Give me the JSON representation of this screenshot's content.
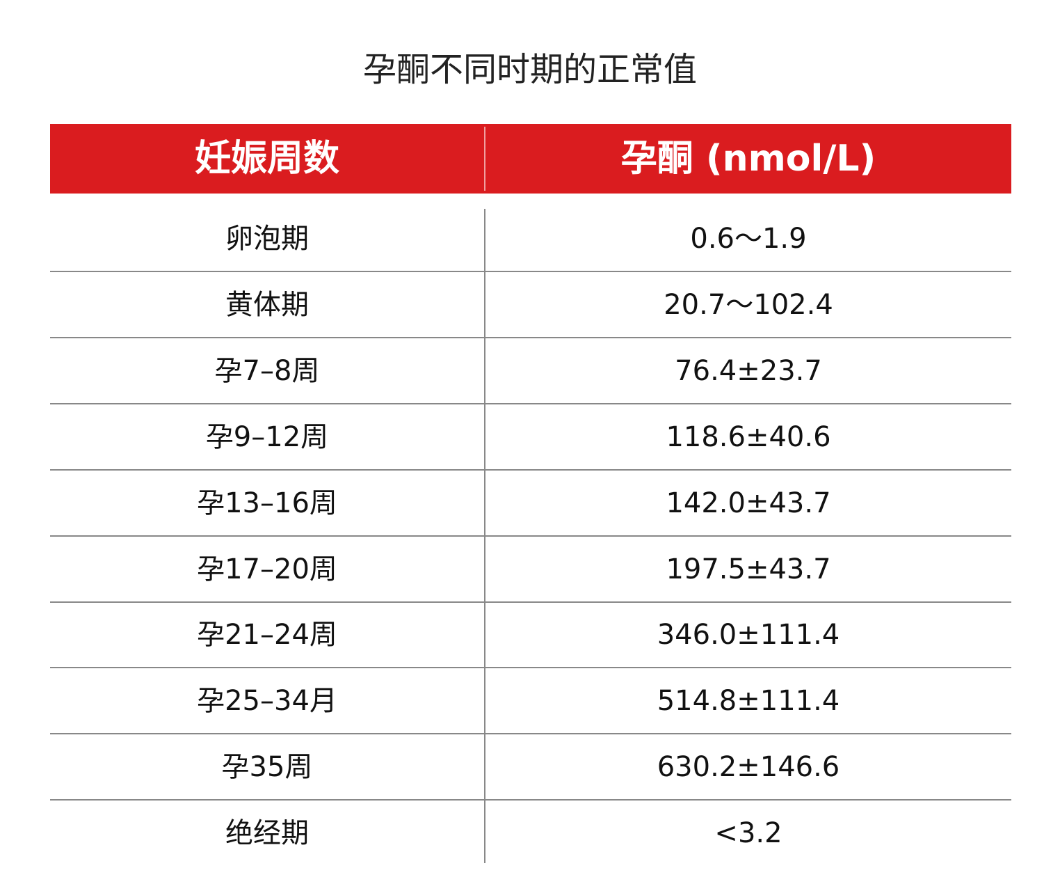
{
  "title": "孕酮不同时期的正常值",
  "accent_color": "#da1c1f",
  "table": {
    "headers": [
      "妊娠周数",
      "孕酮 (nmol/L)"
    ],
    "rows": [
      [
        "卵泡期",
        "0.6～1.9"
      ],
      [
        "黄体期",
        "20.7～102.4"
      ],
      [
        "孕7–8周",
        "76.4±23.7"
      ],
      [
        "孕9–12周",
        "118.6±40.6"
      ],
      [
        "孕13–16周",
        "142.0±43.7"
      ],
      [
        "孕17–20周",
        "197.5±43.7"
      ],
      [
        "孕21–24周",
        "346.0±111.4"
      ],
      [
        "孕25–34月",
        "514.8±111.4"
      ],
      [
        "孕35周",
        "630.2±146.6"
      ],
      [
        "绝经期",
        "<3.2"
      ]
    ]
  }
}
